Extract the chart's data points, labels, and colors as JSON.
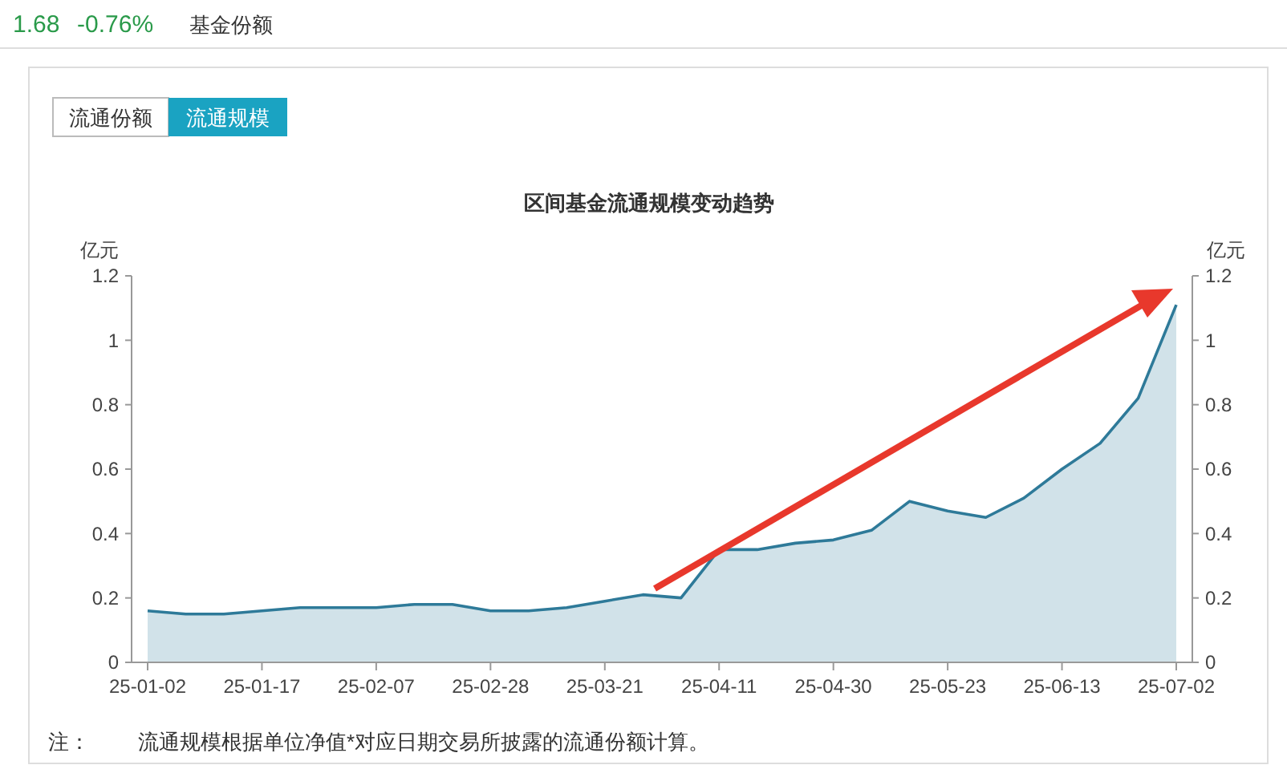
{
  "chart_data": {
    "type": "area",
    "title": "区间基金流通规模变动趋势",
    "ylabel": "亿元",
    "y2label": "亿元",
    "annotations": [
      "1.68",
      "-0.76%",
      "基金份额",
      "流通份额",
      "流通规模",
      "注：",
      "流通规模根据单位净值*对应日期交易所披露的流通份额计算。"
    ],
    "categories": [
      "25-01-02",
      null,
      null,
      "25-01-17",
      null,
      null,
      "25-02-07",
      null,
      null,
      "25-02-28",
      null,
      null,
      "25-03-21",
      null,
      null,
      "25-04-11",
      null,
      null,
      "25-04-30",
      null,
      null,
      "25-05-23",
      null,
      null,
      "25-06-13",
      null,
      null,
      "25-07-02"
    ],
    "series": [
      {
        "color": "#2e7a99",
        "values": [
          0.16,
          0.15,
          0.15,
          0.16,
          0.17,
          0.17,
          0.17,
          0.18,
          0.18,
          0.16,
          0.16,
          0.17,
          0.19,
          0.21,
          0.2,
          0.35,
          0.35,
          0.37,
          0.38,
          0.41,
          0.5,
          0.47,
          0.45,
          0.51,
          0.6,
          0.68,
          0.82,
          1.11
        ]
      }
    ],
    "ylim": [
      0,
      1.2
    ],
    "yticks": [
      0,
      0.2,
      0.4,
      0.6,
      0.8,
      1,
      1.2
    ],
    "y2lim": [
      0,
      1.2
    ],
    "y2ticks": [
      0,
      0.2,
      0.4,
      0.6,
      0.8,
      1,
      1.2
    ],
    "grid": false
  }
}
